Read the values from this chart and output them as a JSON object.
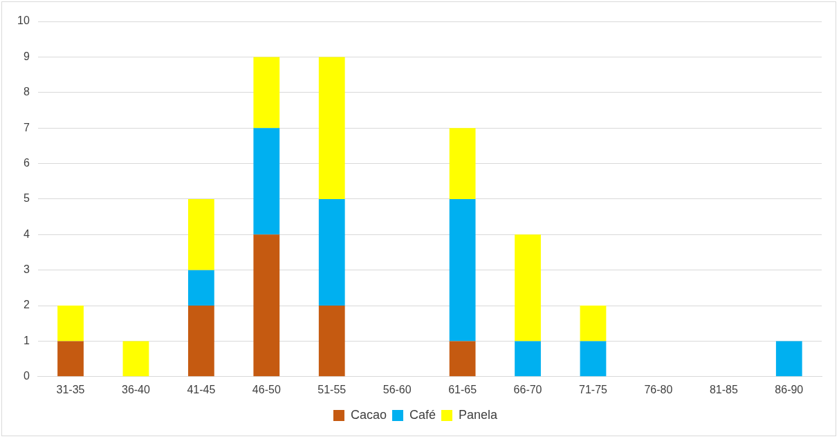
{
  "chart_data": {
    "type": "bar",
    "stacked": true,
    "categories": [
      "31-35",
      "36-40",
      "41-45",
      "46-50",
      "51-55",
      "56-60",
      "61-65",
      "66-70",
      "71-75",
      "76-80",
      "81-85",
      "86-90"
    ],
    "series": [
      {
        "name": "Cacao",
        "color": "#c55a11",
        "values": [
          1,
          0,
          2,
          4,
          2,
          0,
          1,
          0,
          0,
          0,
          0,
          0
        ]
      },
      {
        "name": "Café",
        "color": "#00b0f0",
        "values": [
          0,
          0,
          1,
          3,
          3,
          0,
          4,
          1,
          1,
          0,
          0,
          1
        ]
      },
      {
        "name": "Panela",
        "color": "#ffff00",
        "values": [
          1,
          1,
          2,
          2,
          4,
          0,
          2,
          3,
          1,
          0,
          0,
          0
        ]
      }
    ],
    "ylim": [
      0,
      10
    ],
    "yticks": [
      0,
      1,
      2,
      3,
      4,
      5,
      6,
      7,
      8,
      9,
      10
    ],
    "grid": "y",
    "legend": "bottom"
  }
}
